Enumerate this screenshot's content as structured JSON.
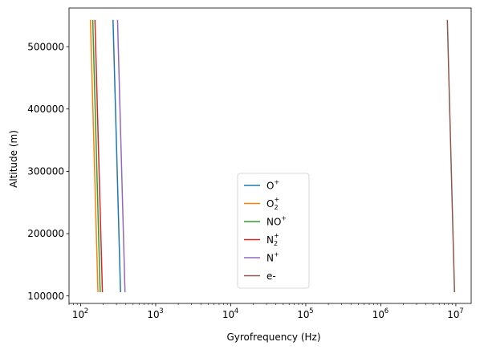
{
  "chart_data": {
    "type": "line",
    "xlabel": "Gyrofrequency (Hz)",
    "ylabel": "Altitude (m)",
    "xscale": "log",
    "xlim": [
      70,
      16000000
    ],
    "ylim": [
      88000,
      562000
    ],
    "x_ticks": [
      {
        "value": 100,
        "base": "10",
        "exp": "2"
      },
      {
        "value": 1000,
        "base": "10",
        "exp": "3"
      },
      {
        "value": 10000,
        "base": "10",
        "exp": "4"
      },
      {
        "value": 100000,
        "base": "10",
        "exp": "5"
      },
      {
        "value": 1000000,
        "base": "10",
        "exp": "6"
      },
      {
        "value": 10000000,
        "base": "10",
        "exp": "7"
      }
    ],
    "y_ticks": [
      {
        "value": 100000,
        "label": "100000"
      },
      {
        "value": 200000,
        "label": "200000"
      },
      {
        "value": 300000,
        "label": "300000"
      },
      {
        "value": 400000,
        "label": "400000"
      },
      {
        "value": 500000,
        "label": "500000"
      }
    ],
    "grid": false,
    "legend_position": "lower-center",
    "series": [
      {
        "name": "O+",
        "label_base": "O",
        "label_sup": "+",
        "label_sub": "",
        "color": "#1f77b4",
        "x": [
          340,
          270
        ],
        "y": [
          106000,
          543000
        ]
      },
      {
        "name": "O2+",
        "label_base": "O",
        "label_sup": "+",
        "label_sub": "2",
        "color": "#ff7f0e",
        "x": [
          170,
          135
        ],
        "y": [
          106000,
          543000
        ]
      },
      {
        "name": "NO+",
        "label_base": "NO",
        "label_sup": "+",
        "label_sub": "",
        "color": "#2ca02c",
        "x": [
          182,
          145
        ],
        "y": [
          106000,
          543000
        ]
      },
      {
        "name": "N2+",
        "label_base": "N",
        "label_sup": "+",
        "label_sub": "2",
        "color": "#d62728",
        "x": [
          195,
          155
        ],
        "y": [
          106000,
          543000
        ]
      },
      {
        "name": "N+",
        "label_base": "N",
        "label_sup": "+",
        "label_sub": "",
        "color": "#9467bd",
        "x": [
          390,
          310
        ],
        "y": [
          106000,
          543000
        ]
      },
      {
        "name": "e-",
        "label_base": "e-",
        "label_sup": "",
        "label_sub": "",
        "color": "#8c564b",
        "x": [
          9600000,
          7700000
        ],
        "y": [
          106000,
          543000
        ]
      }
    ]
  }
}
